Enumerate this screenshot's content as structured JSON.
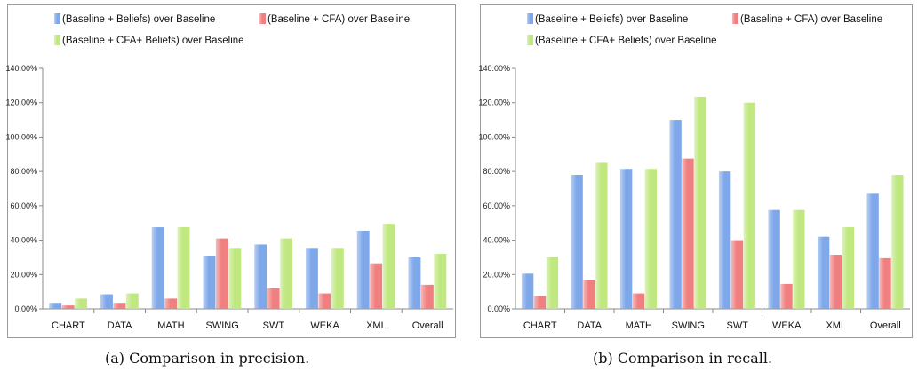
{
  "captions": {
    "a": "(a) Comparison in precision.",
    "b": "(b) Comparison in recall."
  },
  "colors": {
    "beliefs": "#7fa8ea",
    "cfa": "#f07f7f",
    "cfa_beliefs": "#bfe880"
  },
  "chart_data": [
    {
      "type": "bar",
      "categories": [
        "CHART",
        "DATA",
        "MATH",
        "SWING",
        "SWT",
        "WEKA",
        "XML",
        "Overall"
      ],
      "y_ticks": [
        "0.00%",
        "20.00%",
        "40.00%",
        "60.00%",
        "80.00%",
        "100.00%",
        "120.00%",
        "140.00%"
      ],
      "ylim": [
        0,
        140
      ],
      "legend_position": "top",
      "series": [
        {
          "name": "(Baseline + Beliefs) over Baseline",
          "values": [
            3.5,
            8.5,
            47.5,
            31,
            37.5,
            35.5,
            45.5,
            30
          ]
        },
        {
          "name": "(Baseline + CFA) over Baseline",
          "values": [
            2,
            3.5,
            6,
            41,
            12,
            9,
            26.5,
            14
          ]
        },
        {
          "name": "(Baseline + CFA+ Beliefs) over Baseline",
          "values": [
            6,
            9,
            47.5,
            35.5,
            41,
            35.5,
            49.5,
            32
          ]
        }
      ]
    },
    {
      "type": "bar",
      "categories": [
        "CHART",
        "DATA",
        "MATH",
        "SWING",
        "SWT",
        "WEKA",
        "XML",
        "Overall"
      ],
      "y_ticks": [
        "0.00%",
        "20.00%",
        "40.00%",
        "60.00%",
        "80.00%",
        "100.00%",
        "120.00%",
        "140.00%"
      ],
      "ylim": [
        0,
        140
      ],
      "legend_position": "top",
      "series": [
        {
          "name": "(Baseline + Beliefs) over Baseline",
          "values": [
            20.5,
            78,
            81.5,
            110,
            80,
            57.5,
            42,
            67
          ]
        },
        {
          "name": "(Baseline + CFA) over Baseline",
          "values": [
            7.5,
            17,
            9,
            87.5,
            40,
            14.5,
            31.5,
            29.5
          ]
        },
        {
          "name": "(Baseline + CFA+ Beliefs) over Baseline",
          "values": [
            30.5,
            85,
            81.5,
            123.5,
            120,
            57.5,
            47.5,
            78
          ]
        }
      ]
    }
  ]
}
